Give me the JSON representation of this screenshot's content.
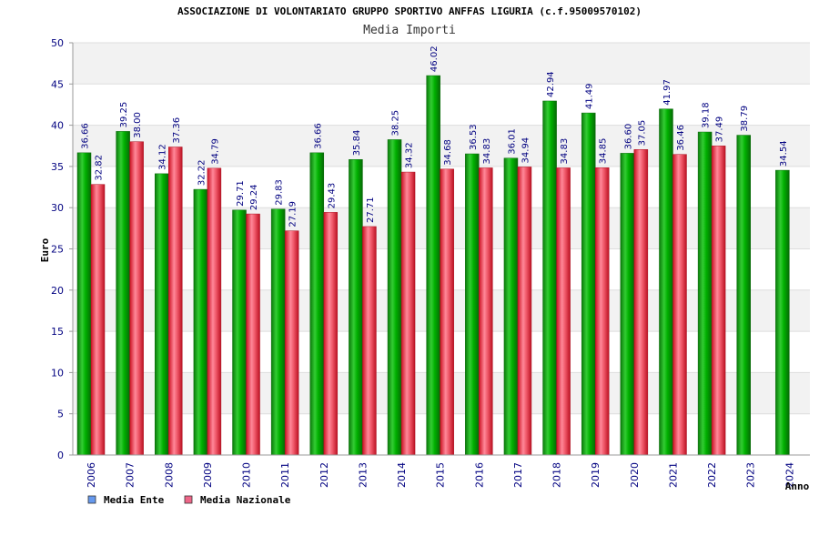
{
  "chart_data": {
    "type": "bar",
    "title": "ASSOCIAZIONE DI VOLONTARIATO GRUPPO SPORTIVO ANFFAS LIGURIA (c.f.95009570102)",
    "subtitle": "Media Importi",
    "xlabel": "Anno",
    "ylabel": "Euro",
    "ylim": [
      0,
      50
    ],
    "yticks": [
      0,
      5,
      10,
      15,
      20,
      25,
      30,
      35,
      40,
      45,
      50
    ],
    "grid": true,
    "legend_position": "bottom-left",
    "categories": [
      "2006",
      "2007",
      "2008",
      "2009",
      "2010",
      "2011",
      "2012",
      "2013",
      "2014",
      "2015",
      "2016",
      "2017",
      "2018",
      "2019",
      "2020",
      "2021",
      "2022",
      "2023",
      "2024"
    ],
    "series": [
      {
        "name": "Media Ente",
        "color": "#22aa22",
        "legend_color": "#6699ee",
        "values": [
          36.66,
          39.25,
          34.12,
          32.22,
          29.71,
          29.83,
          36.66,
          35.84,
          38.25,
          46.02,
          36.53,
          36.01,
          42.94,
          41.49,
          36.6,
          41.97,
          39.18,
          38.79,
          34.54
        ],
        "labels": [
          "36.66",
          "39.25",
          "34.12",
          "32.22",
          "29.71",
          "29.83",
          "36.66",
          "35.84",
          "38.25",
          "46.02",
          "36.53",
          "36.01",
          "42.94",
          "41.49",
          "36.60",
          "41.97",
          "39.18",
          "38.79",
          "34.54"
        ]
      },
      {
        "name": "Media Nazionale",
        "color": "#ee4444",
        "legend_color": "#ee6688",
        "values": [
          32.82,
          38.0,
          37.36,
          34.79,
          29.24,
          27.19,
          29.43,
          27.71,
          34.32,
          34.68,
          34.83,
          34.94,
          34.83,
          34.85,
          37.05,
          36.46,
          37.49,
          null,
          null
        ],
        "labels": [
          "32.82",
          "38.00",
          "37.36",
          "34.79",
          "29.24",
          "27.19",
          "29.43",
          "27.71",
          "34.32",
          "34.68",
          "34.83",
          "34.94",
          "34.83",
          "34.85",
          "37.05",
          "36.46",
          "37.49",
          "",
          ""
        ]
      }
    ]
  }
}
